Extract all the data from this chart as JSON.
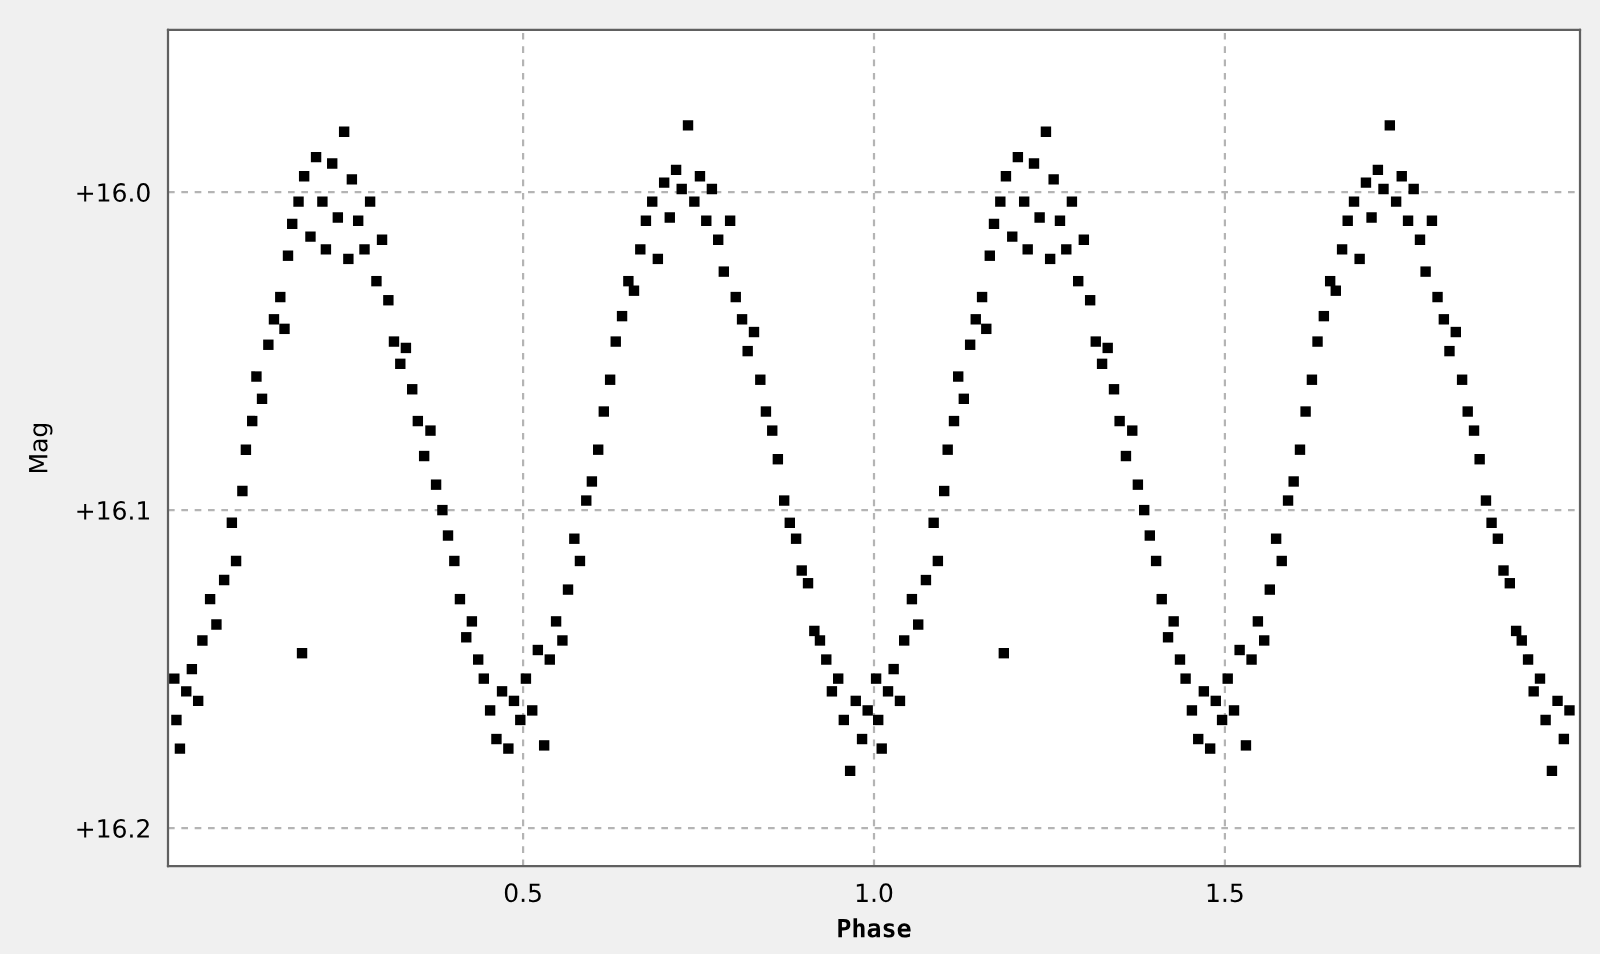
{
  "chart_data": {
    "type": "scatter",
    "xlabel": "Phase",
    "ylabel": "Mag",
    "xlim": [
      -0.006,
      2.006
    ],
    "ylim": [
      16.212,
      15.949
    ],
    "xticks": [
      {
        "value": 0.5,
        "label": "0.5"
      },
      {
        "value": 1.0,
        "label": "1.0"
      },
      {
        "value": 1.5,
        "label": "1.5"
      }
    ],
    "yticks": [
      {
        "value": 16.0,
        "label": "+16.0"
      },
      {
        "value": 16.1,
        "label": "+16.1"
      },
      {
        "value": 16.2,
        "label": "+16.2"
      }
    ],
    "grid": true,
    "marker": "square",
    "series": [
      {
        "color": "#000000",
        "x": [
          0.003,
          0.006,
          0.011,
          0.02,
          0.028,
          0.037,
          0.043,
          0.054,
          0.063,
          0.074,
          0.085,
          0.091,
          0.1,
          0.105,
          0.114,
          0.12,
          0.128,
          0.137,
          0.145,
          0.154,
          0.16,
          0.165,
          0.171,
          0.18,
          0.185,
          0.188,
          0.197,
          0.205,
          0.214,
          0.219,
          0.228,
          0.236,
          0.245,
          0.251,
          0.256,
          0.265,
          0.274,
          0.282,
          0.291,
          0.299,
          0.308,
          0.316,
          0.325,
          0.333,
          0.342,
          0.35,
          0.359,
          0.368,
          0.376,
          0.385,
          0.393,
          0.402,
          0.41,
          0.419,
          0.427,
          0.436,
          0.444,
          0.453,
          0.462,
          0.47,
          0.479,
          0.487,
          0.496,
          0.504,
          0.513,
          0.521,
          0.53,
          0.538,
          0.547,
          0.556,
          0.564,
          0.573,
          0.581,
          0.59,
          0.598,
          0.607,
          0.615,
          0.624,
          0.632,
          0.641,
          0.65,
          0.658,
          0.667,
          0.675,
          0.684,
          0.692,
          0.701,
          0.709,
          0.718,
          0.726,
          0.735,
          0.744,
          0.752,
          0.761,
          0.769,
          0.778,
          0.786,
          0.795,
          0.803,
          0.812,
          0.82,
          0.829,
          0.838,
          0.846,
          0.855,
          0.863,
          0.872,
          0.88,
          0.889,
          0.897,
          0.906,
          0.915,
          0.923,
          0.932,
          0.94,
          0.949,
          0.957,
          0.966,
          0.974,
          0.983,
          0.991,
          1.003,
          1.006,
          1.011,
          1.02,
          1.028,
          1.037,
          1.043,
          1.054,
          1.063,
          1.074,
          1.085,
          1.091,
          1.1,
          1.105,
          1.114,
          1.12,
          1.128,
          1.137,
          1.145,
          1.154,
          1.16,
          1.165,
          1.171,
          1.18,
          1.185,
          1.188,
          1.197,
          1.205,
          1.214,
          1.219,
          1.228,
          1.236,
          1.245,
          1.251,
          1.256,
          1.265,
          1.274,
          1.282,
          1.291,
          1.299,
          1.308,
          1.316,
          1.325,
          1.333,
          1.342,
          1.35,
          1.359,
          1.368,
          1.376,
          1.385,
          1.393,
          1.402,
          1.41,
          1.419,
          1.427,
          1.436,
          1.444,
          1.453,
          1.462,
          1.47,
          1.479,
          1.487,
          1.496,
          1.504,
          1.513,
          1.521,
          1.53,
          1.538,
          1.547,
          1.556,
          1.564,
          1.573,
          1.581,
          1.59,
          1.598,
          1.607,
          1.615,
          1.624,
          1.632,
          1.641,
          1.65,
          1.658,
          1.667,
          1.675,
          1.684,
          1.692,
          1.701,
          1.709,
          1.718,
          1.726,
          1.735,
          1.744,
          1.752,
          1.761,
          1.769,
          1.778,
          1.786,
          1.795,
          1.803,
          1.812,
          1.82,
          1.829,
          1.838,
          1.846,
          1.855,
          1.863,
          1.872,
          1.88,
          1.889,
          1.897,
          1.906,
          1.915,
          1.923,
          1.932,
          1.94,
          1.949,
          1.957,
          1.966,
          1.974,
          1.983,
          1.991
        ],
        "values": [
          16.153,
          16.166,
          16.175,
          16.157,
          16.15,
          16.16,
          16.141,
          16.128,
          16.136,
          16.122,
          16.104,
          16.116,
          16.094,
          16.081,
          16.072,
          16.058,
          16.065,
          16.048,
          16.04,
          16.033,
          16.043,
          16.02,
          16.01,
          16.003,
          16.145,
          15.995,
          16.014,
          15.989,
          16.003,
          16.018,
          15.991,
          16.008,
          15.981,
          16.021,
          15.996,
          16.009,
          16.018,
          16.003,
          16.028,
          16.015,
          16.034,
          16.047,
          16.054,
          16.049,
          16.062,
          16.072,
          16.083,
          16.075,
          16.092,
          16.1,
          16.108,
          16.116,
          16.128,
          16.14,
          16.135,
          16.147,
          16.153,
          16.163,
          16.172,
          16.157,
          16.175,
          16.16,
          16.166,
          16.153,
          16.163,
          16.144,
          16.174,
          16.147,
          16.135,
          16.141,
          16.125,
          16.109,
          16.116,
          16.097,
          16.091,
          16.081,
          16.069,
          16.059,
          16.047,
          16.039,
          16.028,
          16.031,
          16.018,
          16.009,
          16.003,
          16.021,
          15.997,
          16.008,
          15.993,
          15.999,
          15.979,
          16.003,
          15.995,
          16.009,
          15.999,
          16.015,
          16.025,
          16.009,
          16.033,
          16.04,
          16.05,
          16.044,
          16.059,
          16.069,
          16.075,
          16.084,
          16.097,
          16.104,
          16.109,
          16.119,
          16.123,
          16.138,
          16.141,
          16.147,
          16.157,
          16.153,
          16.166,
          16.182,
          16.16,
          16.172,
          16.163,
          16.153,
          16.166,
          16.175,
          16.157,
          16.15,
          16.16,
          16.141,
          16.128,
          16.136,
          16.122,
          16.104,
          16.116,
          16.094,
          16.081,
          16.072,
          16.058,
          16.065,
          16.048,
          16.04,
          16.033,
          16.043,
          16.02,
          16.01,
          16.003,
          16.145,
          15.995,
          16.014,
          15.989,
          16.003,
          16.018,
          15.991,
          16.008,
          15.981,
          16.021,
          15.996,
          16.009,
          16.018,
          16.003,
          16.028,
          16.015,
          16.034,
          16.047,
          16.054,
          16.049,
          16.062,
          16.072,
          16.083,
          16.075,
          16.092,
          16.1,
          16.108,
          16.116,
          16.128,
          16.14,
          16.135,
          16.147,
          16.153,
          16.163,
          16.172,
          16.157,
          16.175,
          16.16,
          16.166,
          16.153,
          16.163,
          16.144,
          16.174,
          16.147,
          16.135,
          16.141,
          16.125,
          16.109,
          16.116,
          16.097,
          16.091,
          16.081,
          16.069,
          16.059,
          16.047,
          16.039,
          16.028,
          16.031,
          16.018,
          16.009,
          16.003,
          16.021,
          15.997,
          16.008,
          15.993,
          15.999,
          15.979,
          16.003,
          15.995,
          16.009,
          15.999,
          16.015,
          16.025,
          16.009,
          16.033,
          16.04,
          16.05,
          16.044,
          16.059,
          16.069,
          16.075,
          16.084,
          16.097,
          16.104,
          16.109,
          16.119,
          16.123,
          16.138,
          16.141,
          16.147,
          16.157,
          16.153,
          16.166,
          16.182,
          16.16,
          16.172,
          16.163
        ]
      }
    ]
  }
}
